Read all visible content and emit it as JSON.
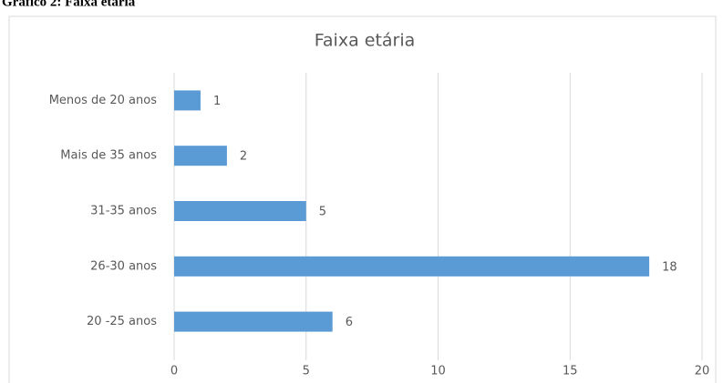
{
  "chart_data": {
    "type": "bar",
    "orientation": "horizontal",
    "caption": "Gráfico 2: Faixa etária",
    "title": "Faixa etária",
    "categories": [
      "Menos de 20 anos",
      "Mais de 35 anos",
      "31-35 anos",
      "26-30 anos",
      "20 -25 anos"
    ],
    "values": [
      1,
      2,
      5,
      18,
      6
    ],
    "color": "#5b9bd5",
    "xlim": [
      0,
      20
    ],
    "xticks": [
      0,
      5,
      10,
      15,
      20
    ],
    "grid": true
  }
}
